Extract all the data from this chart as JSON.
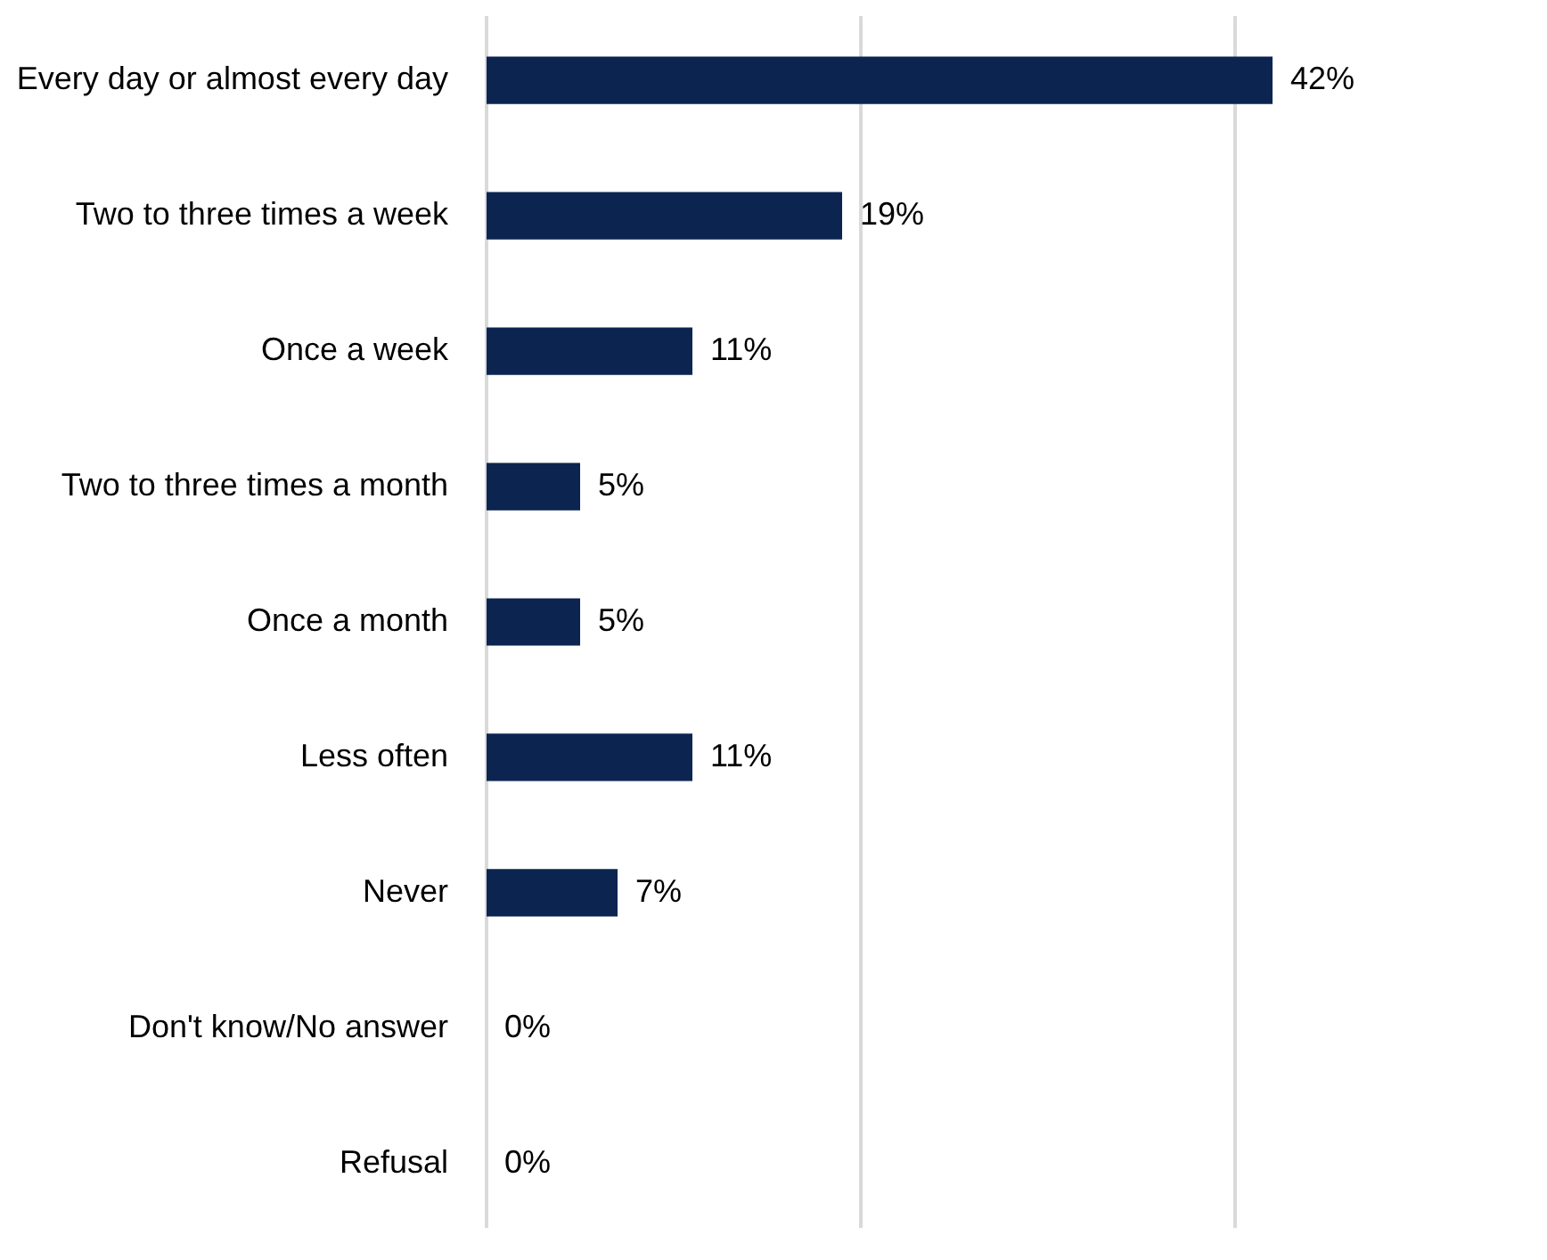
{
  "chart_data": {
    "type": "bar",
    "orientation": "horizontal",
    "categories": [
      "Every day or almost every day",
      "Two to three times a week",
      "Once a week",
      "Two to three times a month",
      "Once a month",
      "Less often",
      "Never",
      "Don't know/No answer",
      "Refusal"
    ],
    "values": [
      42,
      19,
      11,
      5,
      5,
      11,
      7,
      0,
      0
    ],
    "value_labels": [
      "42%",
      "19%",
      "11%",
      "5%",
      "5%",
      "11%",
      "7%",
      "0%",
      "0%"
    ],
    "color": "#0b2550",
    "ref_lines": [
      {
        "axis": "x",
        "value": 0,
        "color": "#d9d9d9"
      },
      {
        "axis": "x",
        "value": 20,
        "color": "#d9d9d9"
      },
      {
        "axis": "x",
        "value": 40,
        "color": "#d9d9d9"
      }
    ],
    "tick_labels": "y"
  }
}
